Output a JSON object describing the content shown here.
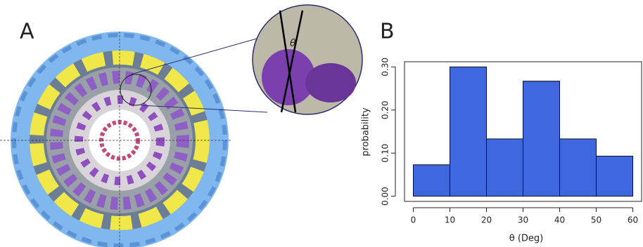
{
  "panels": {
    "a_label": "A",
    "b_label": "B",
    "inset_label": "θ"
  },
  "chart_data": {
    "type": "histogram",
    "xlabel": "θ (Deg)",
    "ylabel": "probability",
    "bins": [
      0,
      10,
      20,
      30,
      40,
      50,
      60
    ],
    "values": [
      0.073,
      0.3,
      0.133,
      0.267,
      0.133,
      0.093
    ],
    "color": "#3f67e0",
    "xlim": [
      -2.4,
      62.4
    ],
    "ylim": [
      -0.012,
      0.312
    ],
    "xticks": [
      0,
      10,
      20,
      30,
      40,
      50,
      60
    ],
    "yticks": [
      {
        "value": 0,
        "label": "0.00"
      },
      {
        "value": 0.1,
        "label": "0.10"
      },
      {
        "value": 0.2,
        "label": "0.20"
      },
      {
        "value": 0.3,
        "label": "0.30"
      }
    ]
  }
}
